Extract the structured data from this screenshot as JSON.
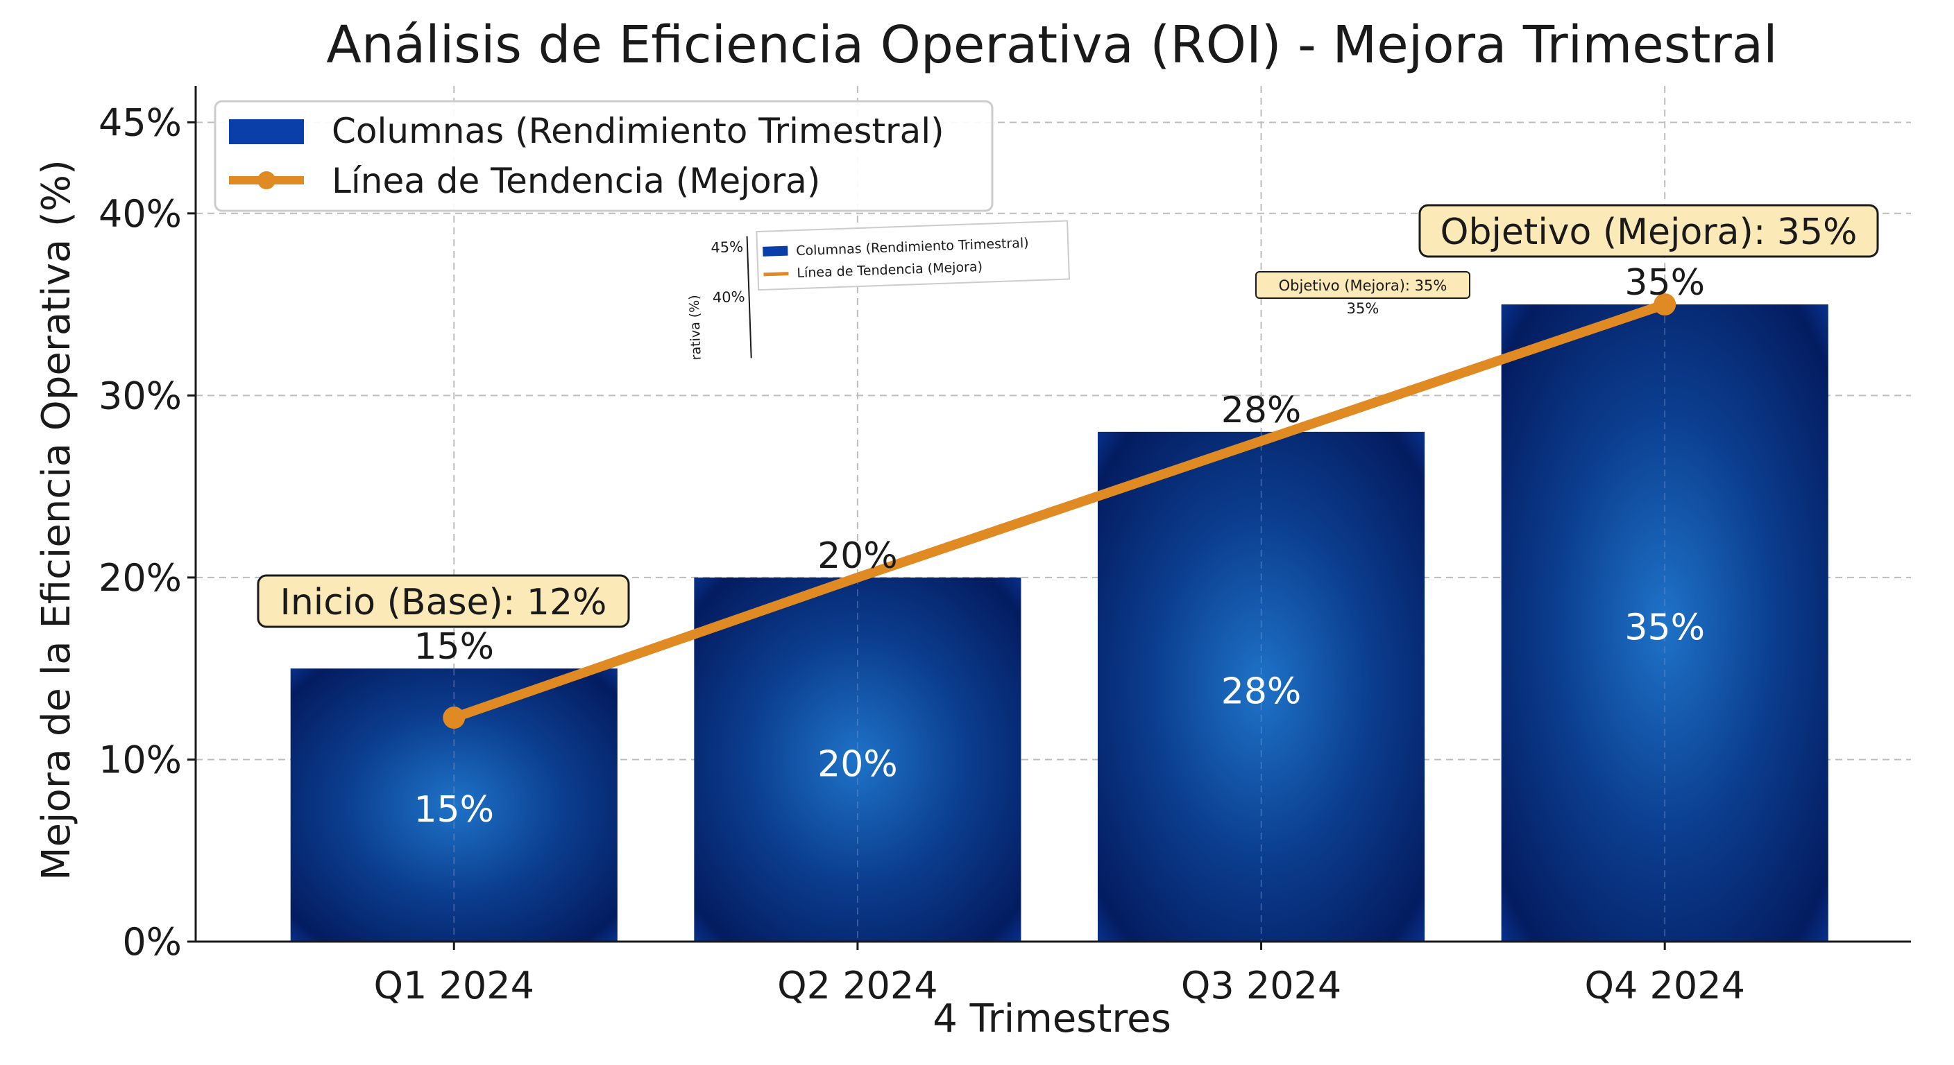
{
  "chart_data": {
    "type": "bar",
    "title": "Análisis de Eficiencia Operativa (ROI) - Mejora Trimestral",
    "xlabel": "4 Trimestres",
    "ylabel": "Mejora de la Eficiencia Operativa (%)",
    "ylim": [
      0,
      47
    ],
    "yticks": [
      "0%",
      "10%",
      "20%",
      "30%",
      "40%",
      "45%"
    ],
    "categories": [
      "Q1 2024",
      "Q2 2024",
      "Q3 2024",
      "Q4 2024"
    ],
    "grid": true,
    "legend_position": "top-left",
    "series": [
      {
        "name": "Columnas (Rendimiento Trimestral)",
        "type": "bar",
        "values": [
          15,
          20,
          28,
          35
        ],
        "labels": [
          "15%",
          "20%",
          "28%",
          "35%"
        ],
        "color": "#0a2a8a"
      },
      {
        "name": "Línea de Tendencia (Mejora)",
        "type": "line",
        "values": [
          12.3,
          20,
          27.5,
          35
        ],
        "color": "#e08a24"
      }
    ],
    "annotations": [
      {
        "text": "Inicio (Base): 12%",
        "category": "Q1 2024"
      },
      {
        "text": "Objetivo (Mejora): 35%",
        "category": "Q4 2024"
      }
    ],
    "inset_artifact": {
      "ticks": [
        "45%",
        "40%"
      ],
      "ylabel": "rativa (%)",
      "legend": [
        "Columnas (Rendimiento Trimestral)",
        "Línea de Tendencia (Mejora)"
      ],
      "annotation": "Objetivo (Mejora): 35%",
      "value": "35%"
    }
  }
}
